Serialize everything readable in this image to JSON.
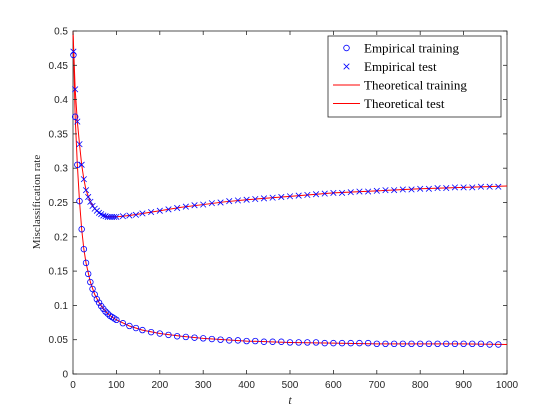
{
  "chart_data": {
    "type": "scatter",
    "xlabel": "t",
    "ylabel": "Misclassification rate",
    "xlim": [
      0,
      1000
    ],
    "ylim": [
      0,
      0.5
    ],
    "x_ticks": [
      0,
      100,
      200,
      300,
      400,
      500,
      600,
      700,
      800,
      900,
      1000
    ],
    "y_ticks": [
      0,
      0.05,
      0.1,
      0.15,
      0.2,
      0.25,
      0.3,
      0.35,
      0.4,
      0.45,
      0.5
    ],
    "grid": false,
    "legend_position": "top-right",
    "series": [
      {
        "name": "Empirical training",
        "kind": "marker-circle",
        "color": "#0000ff",
        "x": [
          1,
          5,
          10,
          15,
          20,
          25,
          30,
          35,
          40,
          45,
          50,
          55,
          60,
          65,
          70,
          75,
          80,
          85,
          90,
          95,
          100,
          115,
          130,
          145,
          160,
          180,
          200,
          220,
          240,
          260,
          280,
          300,
          320,
          340,
          360,
          380,
          400,
          420,
          440,
          460,
          480,
          500,
          520,
          540,
          560,
          580,
          600,
          620,
          640,
          660,
          680,
          700,
          720,
          740,
          760,
          780,
          800,
          820,
          840,
          860,
          880,
          900,
          920,
          940,
          960,
          980
        ],
        "y": [
          0.465,
          0.375,
          0.305,
          0.252,
          0.211,
          0.182,
          0.162,
          0.146,
          0.134,
          0.124,
          0.116,
          0.109,
          0.104,
          0.099,
          0.095,
          0.091,
          0.088,
          0.085,
          0.083,
          0.081,
          0.079,
          0.074,
          0.07,
          0.067,
          0.064,
          0.061,
          0.059,
          0.057,
          0.055,
          0.054,
          0.053,
          0.052,
          0.051,
          0.05,
          0.049,
          0.049,
          0.048,
          0.048,
          0.047,
          0.047,
          0.047,
          0.046,
          0.046,
          0.046,
          0.046,
          0.045,
          0.045,
          0.045,
          0.045,
          0.045,
          0.045,
          0.044,
          0.044,
          0.044,
          0.044,
          0.044,
          0.044,
          0.044,
          0.044,
          0.044,
          0.044,
          0.044,
          0.044,
          0.044,
          0.043,
          0.043
        ]
      },
      {
        "name": "Empirical test",
        "kind": "marker-x",
        "color": "#0000ff",
        "x": [
          1,
          5,
          10,
          15,
          20,
          25,
          30,
          35,
          40,
          45,
          50,
          55,
          60,
          65,
          70,
          75,
          80,
          85,
          90,
          95,
          100,
          115,
          130,
          145,
          160,
          180,
          200,
          220,
          240,
          260,
          280,
          300,
          320,
          340,
          360,
          380,
          400,
          420,
          440,
          460,
          480,
          500,
          520,
          540,
          560,
          580,
          600,
          620,
          640,
          660,
          680,
          700,
          720,
          740,
          760,
          780,
          800,
          820,
          840,
          860,
          880,
          900,
          920,
          940,
          960,
          980
        ],
        "y": [
          0.47,
          0.415,
          0.368,
          0.335,
          0.305,
          0.284,
          0.268,
          0.258,
          0.251,
          0.245,
          0.241,
          0.238,
          0.235,
          0.233,
          0.231,
          0.23,
          0.229,
          0.229,
          0.229,
          0.229,
          0.229,
          0.23,
          0.231,
          0.232,
          0.234,
          0.236,
          0.238,
          0.24,
          0.242,
          0.244,
          0.246,
          0.247,
          0.249,
          0.25,
          0.252,
          0.253,
          0.254,
          0.255,
          0.256,
          0.257,
          0.258,
          0.259,
          0.26,
          0.261,
          0.262,
          0.263,
          0.264,
          0.264,
          0.265,
          0.266,
          0.266,
          0.267,
          0.268,
          0.268,
          0.269,
          0.269,
          0.27,
          0.27,
          0.271,
          0.271,
          0.272,
          0.272,
          0.272,
          0.273,
          0.273,
          0.273
        ]
      },
      {
        "name": "Theoretical training",
        "kind": "line",
        "color": "#ff0000",
        "x": [
          0,
          5,
          10,
          15,
          20,
          25,
          30,
          40,
          50,
          60,
          70,
          80,
          90,
          100,
          130,
          160,
          200,
          250,
          300,
          350,
          400,
          500,
          600,
          700,
          800,
          900,
          1000
        ],
        "y": [
          0.5,
          0.375,
          0.305,
          0.252,
          0.211,
          0.182,
          0.162,
          0.134,
          0.116,
          0.104,
          0.095,
          0.088,
          0.083,
          0.079,
          0.07,
          0.064,
          0.059,
          0.055,
          0.052,
          0.05,
          0.048,
          0.046,
          0.045,
          0.044,
          0.044,
          0.044,
          0.043
        ]
      },
      {
        "name": "Theoretical test",
        "kind": "line",
        "color": "#ff0000",
        "x": [
          0,
          5,
          10,
          15,
          20,
          25,
          30,
          40,
          50,
          60,
          70,
          80,
          90,
          100,
          130,
          160,
          200,
          250,
          300,
          350,
          400,
          500,
          600,
          700,
          800,
          900,
          1000
        ],
        "y": [
          0.5,
          0.415,
          0.368,
          0.335,
          0.305,
          0.284,
          0.268,
          0.251,
          0.241,
          0.235,
          0.231,
          0.229,
          0.229,
          0.229,
          0.231,
          0.234,
          0.238,
          0.243,
          0.247,
          0.251,
          0.254,
          0.259,
          0.264,
          0.267,
          0.27,
          0.272,
          0.274
        ]
      }
    ]
  }
}
